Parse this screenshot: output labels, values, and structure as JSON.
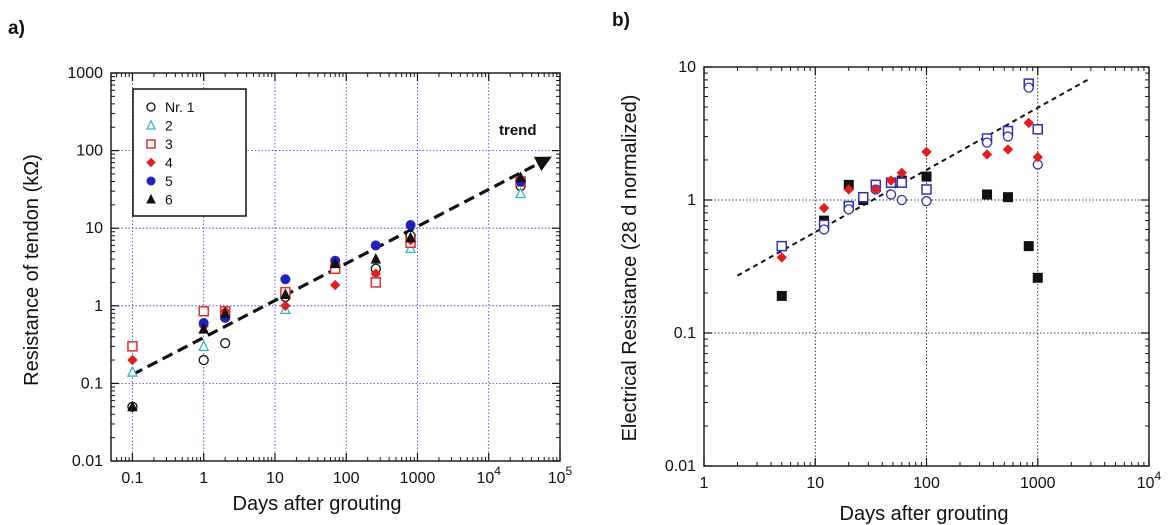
{
  "chart_data": [
    {
      "panel_label": "a)",
      "type": "scatter",
      "xscale": "log",
      "yscale": "log",
      "xlim": [
        0.05,
        100000
      ],
      "ylim": [
        0.01,
        1000
      ],
      "xlabel": "Days after grouting",
      "ylabel": "Resistance of tendon (kΩ)",
      "xticks": [
        {
          "value": 0.1,
          "label": "0.1"
        },
        {
          "value": 1,
          "label": "1"
        },
        {
          "value": 10,
          "label": "10"
        },
        {
          "value": 100,
          "label": "100"
        },
        {
          "value": 1000,
          "label": "1000"
        },
        {
          "value": 10000,
          "label": "10⁴"
        },
        {
          "value": 100000,
          "label": "10⁵"
        }
      ],
      "yticks": [
        {
          "value": 0.01,
          "label": "0.01"
        },
        {
          "value": 0.1,
          "label": "0.1"
        },
        {
          "value": 1,
          "label": "1"
        },
        {
          "value": 10,
          "label": "10"
        },
        {
          "value": 100,
          "label": "100"
        },
        {
          "value": 1000,
          "label": "1000"
        }
      ],
      "grid": true,
      "grid_color": "#3a3adb",
      "legend_position": "top-left",
      "series": [
        {
          "name": "Nr. 1",
          "marker": "circle-open",
          "color": "#111111",
          "points": [
            [
              0.1,
              0.05
            ],
            [
              1,
              0.2
            ],
            [
              2,
              0.33
            ],
            [
              14,
              1.3
            ],
            [
              70,
              3.2
            ],
            [
              260,
              3.0
            ],
            [
              800,
              8.0
            ],
            [
              28000,
              35
            ]
          ]
        },
        {
          "name": "2",
          "marker": "triangle-open",
          "color": "#38b6c8",
          "points": [
            [
              0.1,
              0.14
            ],
            [
              1,
              0.3
            ],
            [
              2,
              0.75
            ],
            [
              14,
              0.9
            ],
            [
              70,
              3.0
            ],
            [
              260,
              2.5
            ],
            [
              800,
              5.5
            ],
            [
              28000,
              28
            ]
          ]
        },
        {
          "name": "3",
          "marker": "square-open",
          "color": "#e03030",
          "points": [
            [
              0.1,
              0.3
            ],
            [
              1,
              0.85
            ],
            [
              2,
              0.85
            ],
            [
              14,
              1.5
            ],
            [
              70,
              3.0
            ],
            [
              260,
              2.0
            ],
            [
              800,
              6.5
            ],
            [
              28000,
              40
            ]
          ]
        },
        {
          "name": "4",
          "marker": "diamond-filled",
          "color": "#e02020",
          "points": [
            [
              0.1,
              0.2
            ],
            [
              1,
              0.55
            ],
            [
              2,
              0.85
            ],
            [
              14,
              1.0
            ],
            [
              70,
              1.85
            ],
            [
              260,
              2.6
            ],
            [
              800,
              7.0
            ],
            [
              28000,
              40
            ]
          ]
        },
        {
          "name": "5",
          "marker": "circle-filled",
          "color": "#2020c0",
          "points": [
            [
              1,
              0.6
            ],
            [
              2,
              0.7
            ],
            [
              14,
              2.2
            ],
            [
              70,
              3.8
            ],
            [
              260,
              6.0
            ],
            [
              800,
              11
            ],
            [
              28000,
              40
            ]
          ]
        },
        {
          "name": "6",
          "marker": "triangle-filled",
          "color": "#111111",
          "points": [
            [
              0.1,
              0.05
            ],
            [
              1,
              0.5
            ],
            [
              2,
              0.8
            ],
            [
              14,
              1.4
            ],
            [
              70,
              3.5
            ],
            [
              260,
              4.0
            ],
            [
              800,
              7.5
            ],
            [
              28000,
              45
            ]
          ]
        }
      ],
      "trend": {
        "label": "trend",
        "style": "dashed-arrow",
        "from": [
          0.1,
          0.13
        ],
        "to": [
          70000,
          80
        ]
      }
    },
    {
      "panel_label": "b)",
      "type": "scatter",
      "xscale": "log",
      "yscale": "log",
      "xlim": [
        1,
        10000
      ],
      "ylim": [
        0.01,
        10
      ],
      "xlabel": "Days after grouting",
      "ylabel": "Electrical Resistance (28 d normalized)",
      "xticks": [
        {
          "value": 1,
          "label": "1"
        },
        {
          "value": 10,
          "label": "10"
        },
        {
          "value": 100,
          "label": "100"
        },
        {
          "value": 1000,
          "label": "1000"
        },
        {
          "value": 10000,
          "label": "10⁴"
        }
      ],
      "yticks": [
        {
          "value": 0.01,
          "label": "0.01"
        },
        {
          "value": 0.1,
          "label": "0.1"
        },
        {
          "value": 1,
          "label": "1"
        },
        {
          "value": 10,
          "label": "10"
        }
      ],
      "grid": true,
      "grid_color": "#000000",
      "series": [
        {
          "marker": "square-filled",
          "color": "#111111",
          "points": [
            [
              5,
              0.19
            ],
            [
              12,
              0.7
            ],
            [
              20,
              1.3
            ],
            [
              27,
              1.0
            ],
            [
              35,
              1.25
            ],
            [
              48,
              1.35
            ],
            [
              60,
              1.4
            ],
            [
              100,
              1.5
            ],
            [
              350,
              1.1
            ],
            [
              540,
              1.05
            ],
            [
              830,
              0.45
            ],
            [
              1000,
              0.26
            ]
          ]
        },
        {
          "marker": "square-open",
          "color": "#3030b0",
          "points": [
            [
              5,
              0.45
            ],
            [
              12,
              0.65
            ],
            [
              20,
              0.9
            ],
            [
              27,
              1.05
            ],
            [
              35,
              1.3
            ],
            [
              48,
              1.35
            ],
            [
              60,
              1.35
            ],
            [
              100,
              1.2
            ],
            [
              350,
              2.9
            ],
            [
              540,
              3.3
            ],
            [
              830,
              7.5
            ],
            [
              1000,
              3.4
            ]
          ]
        },
        {
          "marker": "circle-open",
          "color": "#3030b0",
          "points": [
            [
              12,
              0.6
            ],
            [
              20,
              0.85
            ],
            [
              35,
              1.2
            ],
            [
              48,
              1.1
            ],
            [
              60,
              1.0
            ],
            [
              100,
              0.98
            ],
            [
              350,
              2.7
            ],
            [
              540,
              3.0
            ],
            [
              830,
              7.0
            ],
            [
              1000,
              1.85
            ]
          ]
        },
        {
          "marker": "diamond-filled",
          "color": "#e02020",
          "points": [
            [
              5,
              0.37
            ],
            [
              12,
              0.87
            ],
            [
              20,
              1.2
            ],
            [
              35,
              1.2
            ],
            [
              48,
              1.4
            ],
            [
              60,
              1.6
            ],
            [
              100,
              2.3
            ],
            [
              350,
              2.2
            ],
            [
              540,
              2.4
            ],
            [
              830,
              3.8
            ],
            [
              1000,
              2.1
            ]
          ]
        }
      ],
      "trend": {
        "style": "dashed",
        "from": [
          2,
          0.27
        ],
        "to": [
          2800,
          8
        ]
      }
    }
  ]
}
